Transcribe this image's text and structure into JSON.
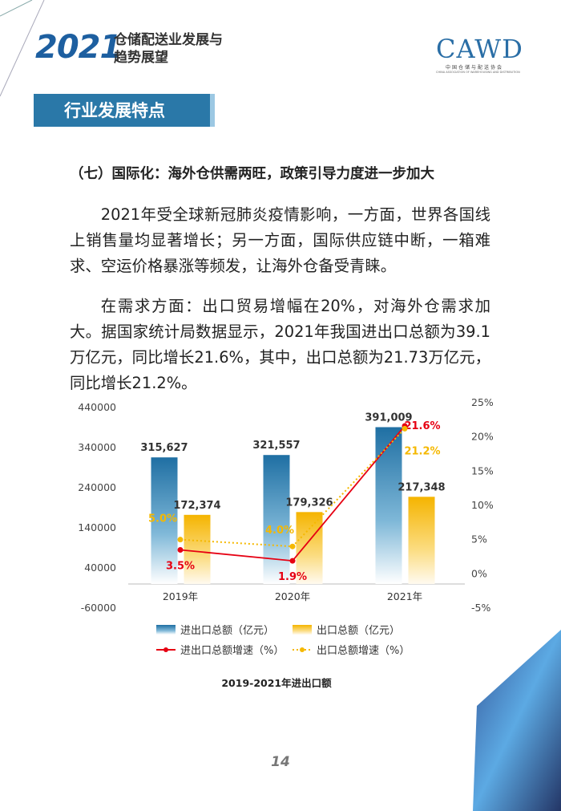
{
  "header": {
    "logo_year": "2021",
    "title_lines": [
      "仓储配送业发展与",
      "趋势展望"
    ],
    "org_logo": "CAWD",
    "org_name_cn": "中国仓储与配送协会",
    "org_name_en": "CHINA ASSOCIATION OF WAREHOUSING AND DISTRIBUTION"
  },
  "section": "行业发展特点",
  "heading": "（七）国际化：海外仓供需两旺，政策引导力度进一步加大",
  "paragraphs": [
    "2021年受全球新冠肺炎疫情影响，一方面，世界各国线上销售量均显著增长；另一方面，国际供应链中断，一箱难求、空运价格暴涨等频发，让海外仓备受青睐。",
    "在需求方面：出口贸易增幅在20%，对海外仓需求加大。据国家统计局数据显示，2021年我国进出口总额为39.1万亿元，同比增长21.6%，其中，出口总额为21.73万亿元，同比增长21.2%。"
  ],
  "chart_data": {
    "type": "bar-line",
    "caption": "2019-2021年进出口额",
    "categories": [
      "2019年",
      "2020年",
      "2021年"
    ],
    "series": [
      {
        "name": "进出口总额（亿元）",
        "type": "bar",
        "color": "#2b7db0",
        "values": [
          315627,
          321557,
          391009
        ],
        "value_labels": [
          "315,627",
          "321,557",
          "391,009"
        ]
      },
      {
        "name": "出口总额（亿元）",
        "type": "bar",
        "color": "#f7b900",
        "values": [
          172374,
          179326,
          217348
        ],
        "value_labels": [
          "172,374",
          "179,326",
          "217,348"
        ]
      },
      {
        "name": "进出口总额增速（%）",
        "type": "line",
        "axis": "y2",
        "color": "#e60012",
        "values": [
          3.5,
          1.9,
          21.6
        ],
        "value_labels": [
          "3.5%",
          "1.9%",
          "21.6%"
        ]
      },
      {
        "name": "出口总额增速（%）",
        "type": "line",
        "axis": "y2",
        "dashed": true,
        "color": "#f5b800",
        "values": [
          5.0,
          4.0,
          21.2
        ],
        "value_labels": [
          "5.0%",
          "4.0%",
          "21.2%"
        ]
      }
    ],
    "ylim": [
      -60000,
      440000
    ],
    "yticks": [
      440000,
      340000,
      240000,
      140000,
      40000,
      -60000
    ],
    "y2lim": [
      -5,
      25
    ],
    "y2ticks": [
      {
        "value": 25,
        "label": "25%"
      },
      {
        "value": 20,
        "label": "20%"
      },
      {
        "value": 15,
        "label": "15%"
      },
      {
        "value": 10,
        "label": "10%"
      },
      {
        "value": 5,
        "label": "5%"
      },
      {
        "value": 0,
        "label": "0%"
      },
      {
        "value": -5,
        "label": "-5%"
      }
    ]
  },
  "page_number": "14"
}
